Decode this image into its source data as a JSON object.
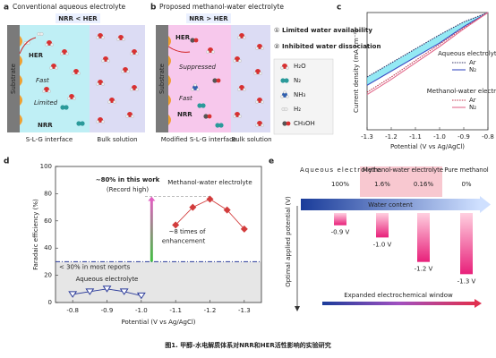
{
  "panel_a": {
    "label": "a",
    "title": "Conventional aqueous electrolyte",
    "comparison": "NRR < HER",
    "her": "HER",
    "fast": "Fast",
    "limited": "Limited",
    "nrr": "NRR",
    "substrate": "Substrate",
    "interface": "S-L-G interface",
    "bulk": "Bulk solution"
  },
  "panel_b": {
    "label": "b",
    "title": "Proposed methanol-water electrolyte",
    "comparison": "NRR > HER",
    "her": "HER",
    "suppressed": "Suppressed",
    "fast": "Fast",
    "nrr": "NRR",
    "substrate": "Substrate",
    "interface": "Modified S-L-G interface",
    "bulk": "Bulk solution",
    "note1_num": "①",
    "note1": "Limited water availability",
    "note2_num": "②",
    "note2": "Inhibited water dissociation",
    "legend": [
      "H₂O",
      "N₂",
      "NH₃",
      "H₂",
      "CH₃OH"
    ]
  },
  "panel_c": {
    "type": "line",
    "label": "c",
    "xlabel": "Potential (V vs Ag/AgCl)",
    "ylabel": "Current density (mA cm⁻²)",
    "xlim": [
      -1.3,
      -0.8
    ],
    "xticks": [
      -1.3,
      -1.2,
      -1.1,
      {
        "value": -1,
        "label": "-1.0"
      },
      -0.9,
      -0.8
    ],
    "ylim": [
      -1,
      0
    ],
    "x": [
      -1.3,
      -1.2,
      -1.1,
      -1.0,
      -0.9,
      -0.8
    ],
    "legend_groups": [
      "Aqueous electrolyte",
      "Methanol-water electrolyte"
    ],
    "series": [
      {
        "name": "Ar",
        "group": 0,
        "color": "#333366",
        "style": "dotted",
        "values": [
          -0.55,
          -0.43,
          -0.31,
          -0.19,
          -0.08,
          0
        ]
      },
      {
        "name": "N₂",
        "group": 0,
        "color": "#3b4fc4",
        "style": "solid",
        "values": [
          -0.62,
          -0.5,
          -0.38,
          -0.26,
          -0.12,
          0
        ]
      },
      {
        "name": "Ar",
        "group": 1,
        "color": "#c0304a",
        "style": "dotted",
        "values": [
          -0.68,
          -0.55,
          -0.41,
          -0.27,
          -0.13,
          0
        ]
      },
      {
        "name": "N₂",
        "group": 1,
        "color": "#e26a8c",
        "style": "solid",
        "values": [
          -0.7,
          -0.57,
          -0.43,
          -0.29,
          -0.14,
          0
        ]
      }
    ]
  },
  "panel_d": {
    "type": "line",
    "label": "d",
    "xlabel": "Potential (V vs Ag/AgCl)",
    "ylabel": "Faradaic efficiency (%)",
    "xlim": [
      -0.75,
      -1.35
    ],
    "xticks": [
      -0.8,
      -0.9,
      {
        "value": -1,
        "label": "-1.0"
      },
      -1.1,
      -1.2,
      -1.3
    ],
    "ylim": [
      0,
      100
    ],
    "yticks": [
      0,
      20,
      40,
      60,
      80,
      100
    ],
    "reference_lines": [
      30,
      78
    ],
    "series": [
      {
        "name": "Methanol-water electrolyte",
        "color": "#d23c3c",
        "marker": "diamond",
        "x": [
          -1.1,
          -1.15,
          -1.2,
          -1.25,
          -1.3
        ],
        "values": [
          57,
          70,
          76,
          68,
          54
        ]
      },
      {
        "name": "Aqueous electrolyte",
        "color": "#2a3a9a",
        "marker": "triangle-down",
        "x": [
          -0.8,
          -0.85,
          -0.9,
          -0.95,
          -1.0
        ],
        "values": [
          6,
          8,
          10,
          8,
          5
        ]
      }
    ],
    "annotations": {
      "record": "~80% in this work",
      "record2": "(Record high)",
      "enhance": "~8 times of",
      "enhance2": "enhancement",
      "reports": "< 30% in most reports"
    }
  },
  "panel_e": {
    "label": "e",
    "ylabel": "Optimal applied potential (V)",
    "arrow": "Water content",
    "window": "Expanded electrochemical window",
    "ylim": [
      -0.8,
      -1.4
    ],
    "groups": [
      {
        "name": "Aqueous electrolyte",
        "color": "#2a5aa8"
      },
      {
        "name": "Methanol-water electrolyte",
        "color": "#c02040"
      },
      {
        "name": "Pure methanol",
        "color": "#2a5aa8"
      }
    ],
    "columns": [
      {
        "group": 0,
        "content": "100%",
        "potential": -0.9,
        "potential_label": "-0.9 V"
      },
      {
        "group": 1,
        "content": "1.6%",
        "potential": -1.0,
        "potential_label": "-1.0 V"
      },
      {
        "group": 1,
        "content": "0.16%",
        "potential": -1.2,
        "potential_label": "-1.2 V"
      },
      {
        "group": 2,
        "content": "0%",
        "potential": -1.3,
        "potential_label": "-1.3 V"
      }
    ]
  },
  "caption": "图1. 甲醇-水电解质体系对NRR和HER活性影响的实验研究"
}
